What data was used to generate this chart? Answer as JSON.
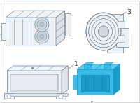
{
  "background_color": "#ffffff",
  "border_color": "#cccccc",
  "line_color": "#7a8a9a",
  "highlight_color": "#3bbde8",
  "highlight_dark": "#1a9ac8",
  "highlight_top": "#55ccf0",
  "label_color": "#333333",
  "label_fontsize": 6.5,
  "lw": 0.55
}
